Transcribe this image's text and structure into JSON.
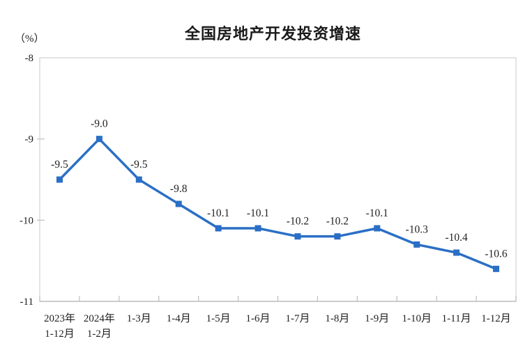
{
  "chart_data": {
    "type": "line",
    "title": "全国房地产开发投资增速",
    "unit_label": "（%）",
    "categories": [
      "2023年\n1-12月",
      "2024年\n1-2月",
      "1-3月",
      "1-4月",
      "1-5月",
      "1-6月",
      "1-7月",
      "1-8月",
      "1-9月",
      "1-10月",
      "1-11月",
      "1-12月"
    ],
    "values": [
      -9.5,
      -9.0,
      -9.5,
      -9.8,
      -10.1,
      -10.1,
      -10.2,
      -10.2,
      -10.1,
      -10.3,
      -10.4,
      -10.6
    ],
    "data_labels": [
      "-9.5",
      "-9.0",
      "-9.5",
      "-9.8",
      "-10.1",
      "-10.1",
      "-10.2",
      "-10.2",
      "-10.1",
      "-10.3",
      "-10.4",
      "-10.6"
    ],
    "ylim": [
      -11,
      -8
    ],
    "yticks": [
      -8,
      -9,
      -10,
      -11
    ],
    "grid": false,
    "legend": null,
    "marker": "square",
    "colors": {
      "line": "#2A6FC5",
      "marker": "#2A6FC5",
      "plot_border": "#d9d9d9",
      "axis": "#bfbfbf",
      "text": "#1f1f1f"
    }
  }
}
